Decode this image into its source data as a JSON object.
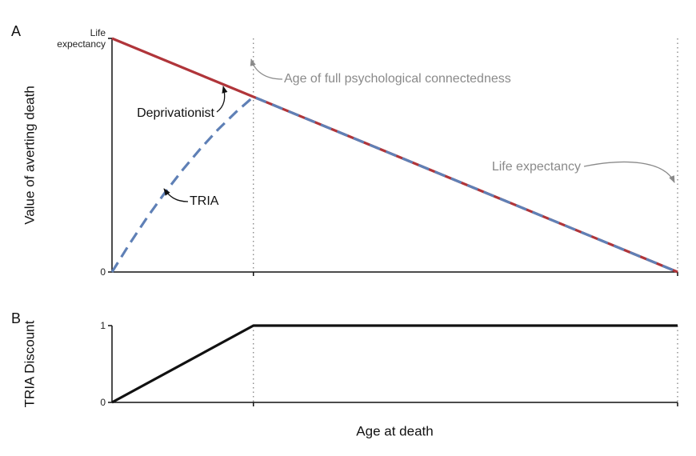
{
  "chart_data": [
    {
      "type": "line",
      "panel_label": "A",
      "ylabel": "Value of averting death",
      "xlim": [
        0,
        80
      ],
      "ylim": [
        0,
        80
      ],
      "yticks": [
        0,
        {
          "value": 80,
          "label": "Life expectancy"
        }
      ],
      "vlines": [
        20,
        80
      ],
      "series": [
        {
          "name": "Deprivationist",
          "color": "#b0353a",
          "dashed": false,
          "x": [
            0,
            80
          ],
          "values": [
            80,
            0
          ]
        },
        {
          "name": "TRIA",
          "color": "#5f80b6",
          "dashed": true,
          "x": [
            0,
            2.5,
            5,
            7.5,
            10,
            12.5,
            15,
            17.5,
            20,
            80
          ],
          "values": [
            0,
            9.7,
            18.8,
            27.2,
            35,
            42.2,
            48.8,
            54.7,
            60,
            0
          ]
        }
      ],
      "annotations": [
        {
          "text": "Age of full psychological connectedness",
          "color": "#8a8a8a"
        },
        {
          "text": "Life expectancy",
          "color": "#8a8a8a"
        }
      ]
    },
    {
      "type": "line",
      "panel_label": "B",
      "ylabel": "TRIA Discount",
      "xlabel": "Age at death",
      "xlim": [
        0,
        80
      ],
      "ylim": [
        0,
        1
      ],
      "yticks": [
        0,
        1
      ],
      "vlines": [
        20,
        80
      ],
      "series": [
        {
          "color": "#111111",
          "dashed": false,
          "x": [
            0,
            20,
            80
          ],
          "values": [
            0,
            1,
            1
          ]
        }
      ]
    }
  ]
}
